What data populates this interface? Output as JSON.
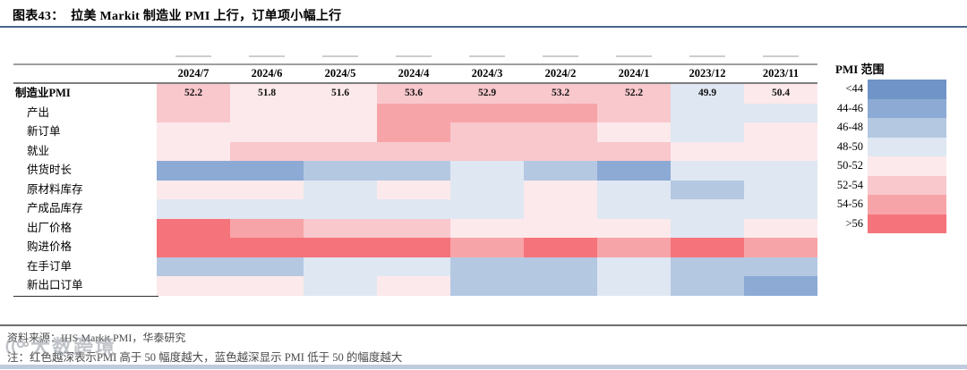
{
  "title": "图表43：  拉美 Markit 制造业 PMI 上行，订单项小幅上行",
  "chart_data": {
    "type": "heatmap",
    "columns": [
      "2024/7",
      "2024/6",
      "2024/5",
      "2024/4",
      "2024/3",
      "2024/2",
      "2024/1",
      "2023/12",
      "2023/11"
    ],
    "rows": [
      {
        "label": "制造业PMI",
        "bold": true,
        "values": [
          "52.2",
          "51.8",
          "51.6",
          "53.6",
          "52.9",
          "53.2",
          "52.2",
          "49.9",
          "50.4"
        ],
        "ranges": [
          "52-54",
          "50-52",
          "50-52",
          "52-54",
          "52-54",
          "52-54",
          "52-54",
          "48-50",
          "50-52"
        ]
      },
      {
        "label": "产出",
        "ranges": [
          "52-54",
          "50-52",
          "50-52",
          "54-56",
          "54-56",
          "54-56",
          "52-54",
          "48-50",
          "48-50"
        ]
      },
      {
        "label": "新订单",
        "ranges": [
          "50-52",
          "50-52",
          "50-52",
          "54-56",
          "52-54",
          "52-54",
          "50-52",
          "48-50",
          "50-52"
        ]
      },
      {
        "label": "就业",
        "ranges": [
          "50-52",
          "52-54",
          "52-54",
          "52-54",
          "52-54",
          "52-54",
          "52-54",
          "50-52",
          "50-52"
        ]
      },
      {
        "label": "供货时长",
        "ranges": [
          "44-46",
          "44-46",
          "46-48",
          "46-48",
          "48-50",
          "46-48",
          "44-46",
          "48-50",
          "48-50"
        ]
      },
      {
        "label": "原材料库存",
        "ranges": [
          "50-52",
          "50-52",
          "48-50",
          "50-52",
          "48-50",
          "50-52",
          "48-50",
          "46-48",
          "48-50"
        ]
      },
      {
        "label": "产成品库存",
        "ranges": [
          "48-50",
          "48-50",
          "48-50",
          "48-50",
          "48-50",
          "50-52",
          "48-50",
          "48-50",
          "48-50"
        ]
      },
      {
        "label": "出厂价格",
        "ranges": [
          ">56",
          "54-56",
          "52-54",
          "52-54",
          "50-52",
          "50-52",
          "50-52",
          "48-50",
          "50-52"
        ]
      },
      {
        "label": "购进价格",
        "ranges": [
          ">56",
          ">56",
          ">56",
          ">56",
          "54-56",
          ">56",
          "54-56",
          ">56",
          "54-56"
        ]
      },
      {
        "label": "在手订单",
        "ranges": [
          "46-48",
          "46-48",
          "48-50",
          "48-50",
          "46-48",
          "46-48",
          "48-50",
          "46-48",
          "46-48"
        ]
      },
      {
        "label": "新出口订单",
        "ranges": [
          "50-52",
          "50-52",
          "48-50",
          "50-52",
          "46-48",
          "46-48",
          "48-50",
          "46-48",
          "44-46"
        ]
      }
    ],
    "legend": {
      "title": "PMI 范围",
      "entries": [
        {
          "label": "<44",
          "color": "#7093c8"
        },
        {
          "label": "44-46",
          "color": "#8caad4"
        },
        {
          "label": "46-48",
          "color": "#b5c8e2"
        },
        {
          "label": "48-50",
          "color": "#dfe7f2"
        },
        {
          "label": "50-52",
          "color": "#fce9eb"
        },
        {
          "label": "52-54",
          "color": "#f8c8cc"
        },
        {
          "label": "54-56",
          "color": "#f7a4a8"
        },
        {
          "label": ">56",
          "color": "#f5737a"
        }
      ]
    }
  },
  "footer": {
    "source": "资料来源：IHS Markit PMI，华泰研究",
    "note": "注：红色越深表示PMI 高于 50 幅度越大，蓝色越深显示 PMI 低于 50 的幅度越大"
  },
  "watermark": {
    "text": "大数跨境"
  },
  "colors": {
    "title_rule": "#46668f",
    "bottom_band": "#b4c1d6"
  }
}
